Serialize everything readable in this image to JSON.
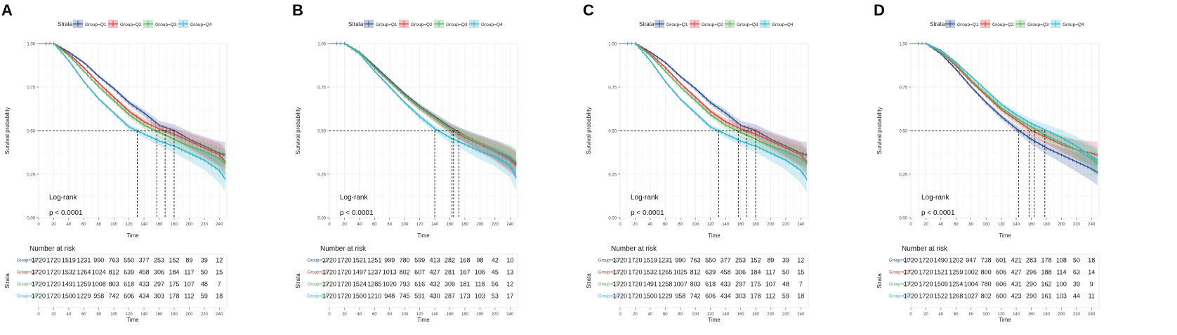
{
  "figure": {
    "legend_title": "Strata",
    "legend_labels": [
      "Group=Q1",
      "Group=Q2",
      "Group=Q3",
      "Group=Q4"
    ],
    "y_axis_label": "Survival probability",
    "x_axis_label": "Time",
    "risk_table_title": "Number at risk",
    "risk_table_y_label": "Strata",
    "risk_row_labels": [
      "Group=Q1",
      "Group=Q2",
      "Group=Q3",
      "Group=Q4"
    ],
    "annotation_test": "Log-rank",
    "annotation_p": "p < 0.0001",
    "colors": [
      "#2b4e93",
      "#e2393b",
      "#59b25c",
      "#38b3cb"
    ]
  },
  "chart_data": [
    {
      "panel": "A",
      "type": "line",
      "xlabel": "Time",
      "ylabel": "Survival probability",
      "xlim": [
        0,
        250
      ],
      "ylim": [
        0,
        1
      ],
      "x_ticks": [
        0,
        20,
        40,
        60,
        80,
        100,
        120,
        140,
        160,
        180,
        200,
        220,
        240
      ],
      "y_ticks": [
        "0.00",
        "0.25",
        "0.50",
        "0.75",
        "1.00"
      ],
      "median_survival": [
        180,
        168,
        157,
        131
      ],
      "series": [
        {
          "name": "Group=Q1",
          "x": [
            0,
            20,
            40,
            60,
            80,
            100,
            120,
            140,
            160,
            180,
            200,
            220,
            240,
            248
          ],
          "y": [
            1.0,
            1.0,
            0.95,
            0.89,
            0.81,
            0.74,
            0.66,
            0.6,
            0.53,
            0.5,
            0.45,
            0.41,
            0.37,
            0.36
          ]
        },
        {
          "name": "Group=Q2",
          "x": [
            0,
            20,
            40,
            60,
            80,
            100,
            120,
            140,
            160,
            180,
            200,
            220,
            240,
            248
          ],
          "y": [
            1.0,
            1.0,
            0.94,
            0.86,
            0.77,
            0.69,
            0.61,
            0.55,
            0.51,
            0.48,
            0.44,
            0.4,
            0.36,
            0.32
          ]
        },
        {
          "name": "Group=Q3",
          "x": [
            0,
            20,
            40,
            60,
            80,
            100,
            120,
            140,
            160,
            180,
            200,
            220,
            240,
            248
          ],
          "y": [
            1.0,
            1.0,
            0.93,
            0.84,
            0.75,
            0.67,
            0.59,
            0.53,
            0.49,
            0.45,
            0.41,
            0.38,
            0.34,
            0.31
          ]
        },
        {
          "name": "Group=Q4",
          "x": [
            0,
            20,
            40,
            60,
            80,
            100,
            120,
            140,
            160,
            180,
            200,
            220,
            240,
            248
          ],
          "y": [
            1.0,
            1.0,
            0.9,
            0.78,
            0.68,
            0.6,
            0.52,
            0.48,
            0.44,
            0.41,
            0.37,
            0.33,
            0.27,
            0.22
          ]
        }
      ],
      "risk_times": [
        0,
        20,
        40,
        60,
        80,
        100,
        120,
        140,
        160,
        180,
        200,
        220,
        240
      ],
      "risk_table": [
        [
          "1720",
          "1720",
          "1519",
          "1231",
          "990",
          "763",
          "550",
          "377",
          "253",
          "152",
          "89",
          "39",
          "12"
        ],
        [
          "1720",
          "1720",
          "1532",
          "1264",
          "1024",
          "812",
          "639",
          "458",
          "306",
          "184",
          "117",
          "50",
          "15"
        ],
        [
          "1720",
          "1720",
          "1491",
          "1259",
          "1008",
          "803",
          "618",
          "433",
          "297",
          "175",
          "107",
          "48",
          "7"
        ],
        [
          "1720",
          "1720",
          "1500",
          "1229",
          "958",
          "742",
          "606",
          "434",
          "303",
          "178",
          "112",
          "59",
          "18"
        ]
      ]
    },
    {
      "panel": "B",
      "type": "line",
      "xlabel": "Time",
      "ylabel": "Survival probability",
      "xlim": [
        0,
        250
      ],
      "ylim": [
        0,
        1
      ],
      "x_ticks": [
        0,
        20,
        40,
        60,
        80,
        100,
        120,
        140,
        160,
        180,
        200,
        220,
        240
      ],
      "y_ticks": [
        "0.00",
        "0.25",
        "0.50",
        "0.75",
        "1.00"
      ],
      "median_survival": [
        172,
        165,
        163,
        140
      ],
      "series": [
        {
          "name": "Group=Q1",
          "x": [
            0,
            20,
            40,
            60,
            80,
            100,
            120,
            140,
            160,
            180,
            200,
            220,
            240,
            248
          ],
          "y": [
            1.0,
            1.0,
            0.95,
            0.87,
            0.79,
            0.71,
            0.64,
            0.58,
            0.52,
            0.47,
            0.43,
            0.39,
            0.34,
            0.31
          ]
        },
        {
          "name": "Group=Q2",
          "x": [
            0,
            20,
            40,
            60,
            80,
            100,
            120,
            140,
            160,
            180,
            200,
            220,
            240,
            248
          ],
          "y": [
            1.0,
            1.0,
            0.95,
            0.86,
            0.78,
            0.7,
            0.63,
            0.57,
            0.51,
            0.46,
            0.42,
            0.38,
            0.33,
            0.3
          ]
        },
        {
          "name": "Group=Q3",
          "x": [
            0,
            20,
            40,
            60,
            80,
            100,
            120,
            140,
            160,
            180,
            200,
            220,
            240,
            248
          ],
          "y": [
            1.0,
            1.0,
            0.95,
            0.86,
            0.78,
            0.7,
            0.63,
            0.57,
            0.51,
            0.47,
            0.43,
            0.39,
            0.35,
            0.32
          ]
        },
        {
          "name": "Group=Q4",
          "x": [
            0,
            20,
            40,
            60,
            80,
            100,
            120,
            140,
            160,
            180,
            200,
            220,
            240,
            248
          ],
          "y": [
            1.0,
            1.0,
            0.94,
            0.84,
            0.75,
            0.66,
            0.58,
            0.51,
            0.46,
            0.42,
            0.38,
            0.35,
            0.3,
            0.23
          ]
        }
      ],
      "risk_times": [
        0,
        20,
        40,
        60,
        80,
        100,
        120,
        140,
        160,
        180,
        200,
        220,
        240
      ],
      "risk_table": [
        [
          "1720",
          "1720",
          "1521",
          "1251",
          "999",
          "780",
          "599",
          "413",
          "282",
          "168",
          "98",
          "42",
          "10"
        ],
        [
          "1720",
          "1720",
          "1497",
          "1237",
          "1013",
          "802",
          "607",
          "427",
          "281",
          "167",
          "106",
          "45",
          "13"
        ],
        [
          "1720",
          "1720",
          "1524",
          "1285",
          "1020",
          "793",
          "616",
          "432",
          "309",
          "181",
          "118",
          "56",
          "12"
        ],
        [
          "1720",
          "1720",
          "1500",
          "1210",
          "948",
          "745",
          "591",
          "430",
          "287",
          "173",
          "103",
          "53",
          "17"
        ]
      ]
    },
    {
      "panel": "C",
      "type": "line",
      "xlabel": "Time",
      "ylabel": "Survival probability",
      "xlim": [
        0,
        250
      ],
      "ylim": [
        0,
        1
      ],
      "x_ticks": [
        0,
        20,
        40,
        60,
        80,
        100,
        120,
        140,
        160,
        180,
        200,
        220,
        240
      ],
      "y_ticks": [
        "0.00",
        "0.25",
        "0.50",
        "0.75",
        "1.00"
      ],
      "median_survival": [
        180,
        168,
        157,
        131
      ],
      "series": [
        {
          "name": "Group=Q1",
          "x": [
            0,
            20,
            40,
            60,
            80,
            100,
            120,
            140,
            160,
            180,
            200,
            220,
            240,
            248
          ],
          "y": [
            1.0,
            1.0,
            0.95,
            0.89,
            0.81,
            0.74,
            0.66,
            0.6,
            0.53,
            0.5,
            0.45,
            0.41,
            0.37,
            0.36
          ]
        },
        {
          "name": "Group=Q2",
          "x": [
            0,
            20,
            40,
            60,
            80,
            100,
            120,
            140,
            160,
            180,
            200,
            220,
            240,
            248
          ],
          "y": [
            1.0,
            1.0,
            0.94,
            0.86,
            0.77,
            0.69,
            0.61,
            0.55,
            0.51,
            0.48,
            0.44,
            0.4,
            0.36,
            0.32
          ]
        },
        {
          "name": "Group=Q3",
          "x": [
            0,
            20,
            40,
            60,
            80,
            100,
            120,
            140,
            160,
            180,
            200,
            220,
            240,
            248
          ],
          "y": [
            1.0,
            1.0,
            0.93,
            0.84,
            0.75,
            0.67,
            0.59,
            0.53,
            0.49,
            0.45,
            0.41,
            0.38,
            0.34,
            0.31
          ]
        },
        {
          "name": "Group=Q4",
          "x": [
            0,
            20,
            40,
            60,
            80,
            100,
            120,
            140,
            160,
            180,
            200,
            220,
            240,
            248
          ],
          "y": [
            1.0,
            1.0,
            0.9,
            0.78,
            0.68,
            0.6,
            0.52,
            0.48,
            0.44,
            0.41,
            0.37,
            0.33,
            0.27,
            0.22
          ]
        }
      ],
      "risk_times": [
        0,
        20,
        40,
        60,
        80,
        100,
        120,
        140,
        160,
        180,
        200,
        220,
        240
      ],
      "risk_table": [
        [
          "1720",
          "1720",
          "1519",
          "1231",
          "990",
          "763",
          "550",
          "377",
          "253",
          "152",
          "89",
          "39",
          "12"
        ],
        [
          "1720",
          "1720",
          "1532",
          "1265",
          "1025",
          "812",
          "639",
          "458",
          "306",
          "184",
          "117",
          "50",
          "15"
        ],
        [
          "1720",
          "1720",
          "1491",
          "1258",
          "1007",
          "803",
          "618",
          "433",
          "297",
          "175",
          "107",
          "48",
          "7"
        ],
        [
          "1720",
          "1720",
          "1500",
          "1229",
          "958",
          "742",
          "606",
          "434",
          "303",
          "178",
          "112",
          "59",
          "18"
        ]
      ]
    },
    {
      "panel": "D",
      "type": "line",
      "xlabel": "Time",
      "ylabel": "Survival probability",
      "xlim": [
        0,
        250
      ],
      "ylim": [
        0,
        1
      ],
      "x_ticks": [
        0,
        20,
        40,
        60,
        80,
        100,
        120,
        140,
        160,
        180,
        200,
        220,
        240
      ],
      "y_ticks": [
        "0.00",
        "0.25",
        "0.50",
        "0.75",
        "1.00"
      ],
      "median_survival": [
        143,
        157,
        164,
        178
      ],
      "series": [
        {
          "name": "Group=Q1",
          "x": [
            0,
            20,
            40,
            60,
            80,
            100,
            120,
            140,
            160,
            180,
            200,
            220,
            240,
            248
          ],
          "y": [
            1.0,
            1.0,
            0.94,
            0.85,
            0.75,
            0.66,
            0.58,
            0.51,
            0.45,
            0.4,
            0.36,
            0.32,
            0.28,
            0.26
          ]
        },
        {
          "name": "Group=Q2",
          "x": [
            0,
            20,
            40,
            60,
            80,
            100,
            120,
            140,
            160,
            180,
            200,
            220,
            240,
            248
          ],
          "y": [
            1.0,
            1.0,
            0.95,
            0.87,
            0.78,
            0.7,
            0.62,
            0.56,
            0.5,
            0.46,
            0.42,
            0.39,
            0.37,
            0.36
          ]
        },
        {
          "name": "Group=Q3",
          "x": [
            0,
            20,
            40,
            60,
            80,
            100,
            120,
            140,
            160,
            180,
            200,
            220,
            240,
            248
          ],
          "y": [
            1.0,
            1.0,
            0.95,
            0.88,
            0.79,
            0.71,
            0.63,
            0.57,
            0.52,
            0.47,
            0.43,
            0.39,
            0.34,
            0.31
          ]
        },
        {
          "name": "Group=Q4",
          "x": [
            0,
            20,
            40,
            60,
            80,
            100,
            120,
            140,
            160,
            180,
            200,
            220,
            240,
            248
          ],
          "y": [
            1.0,
            1.0,
            0.96,
            0.89,
            0.81,
            0.73,
            0.65,
            0.59,
            0.54,
            0.5,
            0.46,
            0.41,
            0.35,
            0.33
          ]
        }
      ],
      "risk_times": [
        0,
        20,
        40,
        60,
        80,
        100,
        120,
        140,
        160,
        180,
        200,
        220,
        240
      ],
      "risk_table": [
        [
          "1720",
          "1720",
          "1490",
          "1202",
          "947",
          "738",
          "601",
          "421",
          "283",
          "178",
          "108",
          "50",
          "18"
        ],
        [
          "1720",
          "1720",
          "1521",
          "1259",
          "1002",
          "800",
          "606",
          "427",
          "296",
          "188",
          "114",
          "63",
          "14"
        ],
        [
          "1720",
          "1720",
          "1509",
          "1254",
          "1004",
          "780",
          "606",
          "431",
          "290",
          "162",
          "100",
          "39",
          "9"
        ],
        [
          "1720",
          "1720",
          "1522",
          "1268",
          "1027",
          "802",
          "600",
          "423",
          "290",
          "161",
          "103",
          "44",
          "11"
        ]
      ]
    }
  ]
}
